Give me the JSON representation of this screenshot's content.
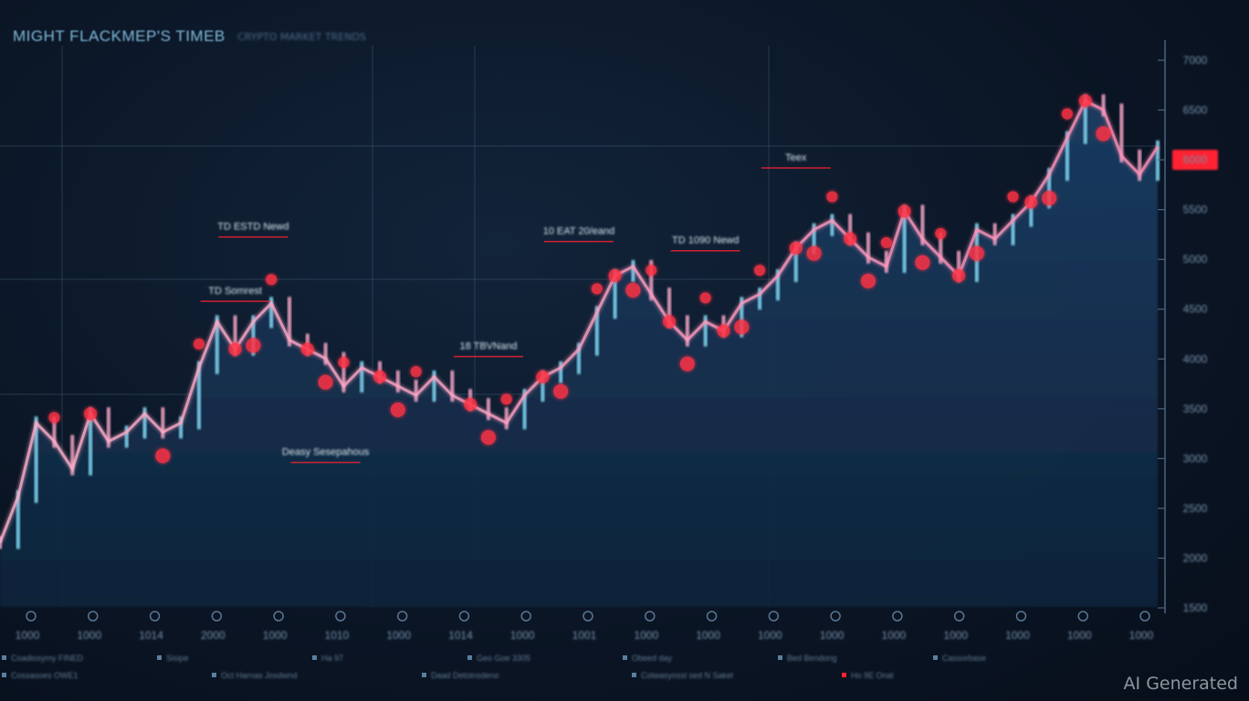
{
  "header": {
    "title": "MIGHT FLACKMEP'S TIMEB",
    "subtitle": "CRYPTO MARKET TRENDS"
  },
  "watermark": "AI Generated",
  "colors": {
    "background": "#0b1626",
    "up": "#7fd6f2",
    "down": "#f2a3c2",
    "marker": "#ff3344",
    "highlight": "#ff2233",
    "area": "#163556"
  },
  "annotations": [
    {
      "label": "TD ESTD Newd",
      "x": 14,
      "y": 5.6
    },
    {
      "label": "TD Somrest",
      "x": 13,
      "y": 4.9
    },
    {
      "label": "10 EAT 20/eand",
      "x": 32,
      "y": 5.55
    },
    {
      "label": "TD 1090 Newd",
      "x": 39,
      "y": 5.45
    },
    {
      "label": "18 TBVNand",
      "x": 27,
      "y": 4.3
    },
    {
      "label": "Teex",
      "x": 44,
      "y": 6.35
    },
    {
      "label": "Deasy Sesepahous",
      "x": 18,
      "y": 3.15
    }
  ],
  "legend": [
    "Coadiosymy FINED",
    "Sisipe",
    "Ha 97",
    "Geo Goe 3305",
    "Obeed day",
    "Bed Bendong",
    "Cassorbase",
    "Cossasoes OWE1",
    "Oct Harnas Josdwnd",
    "Daad Detoinsdeno",
    "Colwasyossl sed N Sakel",
    "Ho 9E Onal"
  ],
  "chart_data": {
    "type": "line",
    "title": "MIGHT FLACKMEP'S TIMEB",
    "subtitle": "CRYPTO MARKET TRENDS",
    "xlabel": "",
    "ylabel": "",
    "x": [
      0,
      1,
      2,
      3,
      4,
      5,
      6,
      7,
      8,
      9,
      10,
      11,
      12,
      13,
      14,
      15,
      16,
      17,
      18,
      19,
      20,
      21,
      22,
      23,
      24,
      25,
      26,
      27,
      28,
      29,
      30,
      31,
      32,
      33,
      34,
      35,
      36,
      37,
      38,
      39,
      40,
      41,
      42,
      43,
      44,
      45,
      46,
      47,
      48,
      49,
      50,
      51,
      52,
      53,
      54,
      55,
      56,
      57,
      58,
      59,
      60,
      61,
      62,
      63,
      64
    ],
    "x_tick_labels": [
      "1000",
      "1000",
      "1014",
      "2000",
      "1000",
      "1010",
      "1000",
      "1014",
      "1000",
      "1001",
      "1000",
      "1000",
      "1000",
      "1000",
      "1000",
      "1000",
      "1000",
      "1000",
      "1000"
    ],
    "series": [
      {
        "values": [
          2.2,
          2.7,
          3.5,
          3.3,
          3.0,
          3.6,
          3.3,
          3.4,
          3.6,
          3.4,
          3.5,
          4.1,
          4.6,
          4.3,
          4.6,
          4.8,
          4.4,
          4.3,
          4.2,
          3.9,
          4.1,
          4.0,
          3.9,
          3.8,
          4.0,
          3.8,
          3.7,
          3.6,
          3.5,
          3.8,
          4.0,
          4.1,
          4.3,
          4.7,
          5.1,
          5.2,
          4.9,
          4.6,
          4.4,
          4.6,
          4.5,
          4.8,
          4.9,
          5.1,
          5.4,
          5.6,
          5.7,
          5.5,
          5.3,
          5.2,
          5.8,
          5.5,
          5.3,
          5.1,
          5.6,
          5.5,
          5.7,
          5.9,
          6.2,
          6.6,
          7.0,
          6.9,
          6.4,
          6.2,
          6.5
        ]
      }
    ],
    "markers_x": [
      3,
      5,
      9,
      11,
      13,
      14,
      15,
      17,
      18,
      19,
      21,
      22,
      23,
      26,
      27,
      28,
      30,
      31,
      33,
      34,
      35,
      36,
      37,
      38,
      39,
      40,
      41,
      42,
      44,
      45,
      46,
      47,
      48,
      49,
      50,
      51,
      52,
      53,
      54,
      56,
      57,
      58,
      59,
      60,
      61
    ],
    "ylim": [
      1.5,
      7.5
    ],
    "y_tick_labels": [
      "7000",
      "6500",
      "6000",
      "5500",
      "5000",
      "4500",
      "4000",
      "3500",
      "3000",
      "2500",
      "2000",
      "1500"
    ],
    "highlight_y_label": "6000",
    "grid": true,
    "legend": "bottom"
  }
}
